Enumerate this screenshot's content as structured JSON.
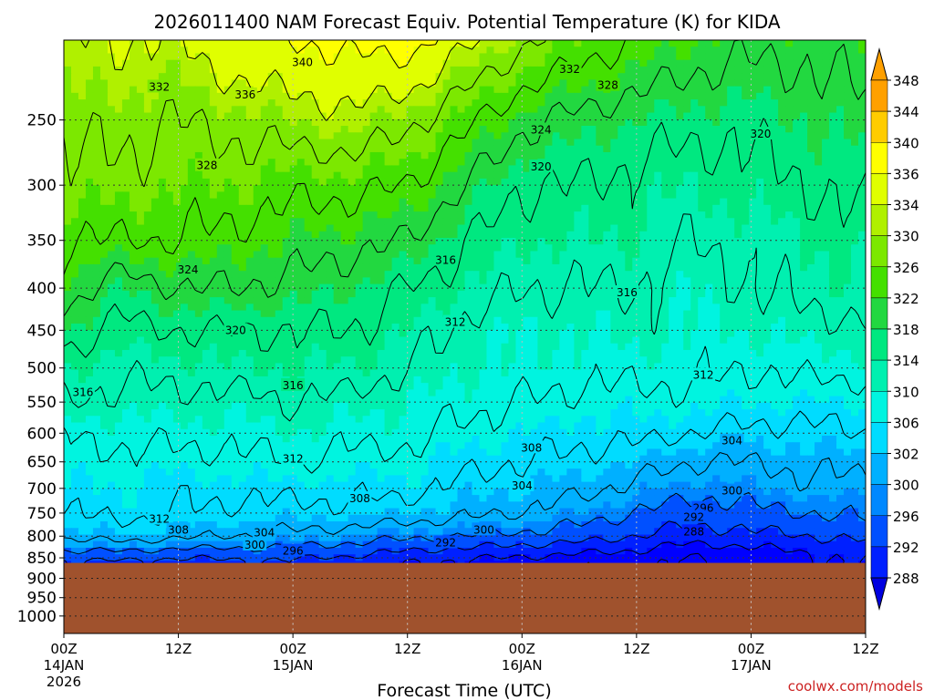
{
  "chart_data": {
    "type": "heatmap",
    "title": "2026011400 NAM Forecast Equiv. Potential Temperature (K) for KIDA",
    "xlabel": "Forecast Time (UTC)",
    "ylabel": "",
    "x_unit": "forecast hours",
    "xlim": [
      0,
      84
    ],
    "ylim": [
      1050,
      200
    ],
    "y_scale": "log",
    "grid": true,
    "legend": "right",
    "x_ticks": [
      {
        "x": 0,
        "label": "00Z",
        "sub": "14JAN",
        "sub2": "2026"
      },
      {
        "x": 12,
        "label": "12Z",
        "sub": "",
        "sub2": ""
      },
      {
        "x": 24,
        "label": "00Z",
        "sub": "15JAN",
        "sub2": ""
      },
      {
        "x": 36,
        "label": "12Z",
        "sub": "",
        "sub2": ""
      },
      {
        "x": 48,
        "label": "00Z",
        "sub": "16JAN",
        "sub2": ""
      },
      {
        "x": 60,
        "label": "12Z",
        "sub": "",
        "sub2": ""
      },
      {
        "x": 72,
        "label": "00Z",
        "sub": "17JAN",
        "sub2": ""
      },
      {
        "x": 84,
        "label": "12Z",
        "sub": "",
        "sub2": ""
      }
    ],
    "y_ticks": [
      {
        "p": 250,
        "label": "250"
      },
      {
        "p": 300,
        "label": "300"
      },
      {
        "p": 350,
        "label": "350"
      },
      {
        "p": 400,
        "label": "400"
      },
      {
        "p": 450,
        "label": "450"
      },
      {
        "p": 500,
        "label": "500"
      },
      {
        "p": 550,
        "label": "550"
      },
      {
        "p": 600,
        "label": "600"
      },
      {
        "p": 650,
        "label": "650"
      },
      {
        "p": 700,
        "label": "700"
      },
      {
        "p": 750,
        "label": "750"
      },
      {
        "p": 800,
        "label": "800"
      },
      {
        "p": 850,
        "label": "850"
      },
      {
        "p": 900,
        "label": "900"
      },
      {
        "p": 950,
        "label": "950"
      },
      {
        "p": 1000,
        "label": "1000"
      }
    ],
    "surface_pressure": 862,
    "surface_color": "#a0522d",
    "colorbar": {
      "labels": [
        "348",
        "344",
        "340",
        "336",
        "334",
        "330",
        "326",
        "322",
        "318",
        "314",
        "310",
        "306",
        "302",
        "300",
        "296",
        "292",
        "288"
      ],
      "colors": [
        "#ffa000",
        "#ffcc00",
        "#ffff00",
        "#e0ff00",
        "#b0f000",
        "#7ce800",
        "#44e000",
        "#22d840",
        "#00e880",
        "#00f0b0",
        "#00f4e0",
        "#00dcff",
        "#00b0ff",
        "#0088ff",
        "#0050ff",
        "#0020ff",
        "#0000ff"
      ],
      "arrow_top_color": "#ffa000",
      "arrow_bottom_color": "#0000e0"
    },
    "fields": [
      {
        "name": "theta_e",
        "units": "K"
      }
    ],
    "profiles": [
      {
        "x": 0,
        "theta_e": [
          [
            862,
            295
          ],
          [
            840,
            299
          ],
          [
            800,
            305
          ],
          [
            750,
            308
          ],
          [
            700,
            310
          ],
          [
            650,
            311
          ],
          [
            600,
            312
          ],
          [
            550,
            316
          ],
          [
            500,
            318
          ],
          [
            450,
            322
          ],
          [
            400,
            326
          ],
          [
            350,
            328
          ],
          [
            300,
            331
          ],
          [
            250,
            333
          ],
          [
            200,
            336
          ]
        ]
      },
      {
        "x": 6,
        "theta_e": [
          [
            862,
            295
          ],
          [
            840,
            299
          ],
          [
            800,
            306
          ],
          [
            750,
            309
          ],
          [
            700,
            310
          ],
          [
            650,
            311
          ],
          [
            600,
            313
          ],
          [
            550,
            315
          ],
          [
            500,
            317
          ],
          [
            450,
            319
          ],
          [
            400,
            322
          ],
          [
            350,
            328
          ],
          [
            300,
            331
          ],
          [
            250,
            333
          ],
          [
            200,
            336
          ]
        ]
      },
      {
        "x": 12,
        "theta_e": [
          [
            862,
            294
          ],
          [
            840,
            298
          ],
          [
            800,
            305
          ],
          [
            750,
            308
          ],
          [
            700,
            309
          ],
          [
            650,
            311
          ],
          [
            600,
            313
          ],
          [
            550,
            315
          ],
          [
            500,
            317
          ],
          [
            450,
            320
          ],
          [
            400,
            324
          ],
          [
            350,
            328
          ],
          [
            300,
            330
          ],
          [
            250,
            332
          ],
          [
            200,
            336
          ]
        ]
      },
      {
        "x": 18,
        "theta_e": [
          [
            862,
            295
          ],
          [
            840,
            298
          ],
          [
            800,
            304
          ],
          [
            750,
            307
          ],
          [
            700,
            309
          ],
          [
            650,
            311
          ],
          [
            600,
            313
          ],
          [
            550,
            315
          ],
          [
            500,
            318
          ],
          [
            450,
            320
          ],
          [
            400,
            324
          ],
          [
            350,
            327
          ],
          [
            300,
            330
          ],
          [
            250,
            333
          ],
          [
            200,
            339
          ]
        ]
      },
      {
        "x": 24,
        "theta_e": [
          [
            862,
            295
          ],
          [
            840,
            298
          ],
          [
            800,
            303
          ],
          [
            750,
            307
          ],
          [
            700,
            309
          ],
          [
            650,
            312
          ],
          [
            600,
            314
          ],
          [
            550,
            316
          ],
          [
            500,
            318
          ],
          [
            450,
            320
          ],
          [
            400,
            323
          ],
          [
            350,
            326
          ],
          [
            300,
            329
          ],
          [
            250,
            334
          ],
          [
            200,
            340
          ]
        ]
      },
      {
        "x": 30,
        "theta_e": [
          [
            862,
            293
          ],
          [
            840,
            297
          ],
          [
            800,
            302
          ],
          [
            750,
            307
          ],
          [
            700,
            309
          ],
          [
            650,
            311
          ],
          [
            600,
            313
          ],
          [
            550,
            315
          ],
          [
            500,
            318
          ],
          [
            450,
            320
          ],
          [
            400,
            322
          ],
          [
            350,
            325
          ],
          [
            300,
            329
          ],
          [
            250,
            335
          ],
          [
            200,
            341
          ]
        ]
      },
      {
        "x": 36,
        "theta_e": [
          [
            862,
            292
          ],
          [
            840,
            295
          ],
          [
            800,
            301
          ],
          [
            750,
            306
          ],
          [
            700,
            309
          ],
          [
            650,
            311
          ],
          [
            600,
            313
          ],
          [
            550,
            314
          ],
          [
            500,
            316
          ],
          [
            450,
            318
          ],
          [
            400,
            320
          ],
          [
            350,
            324
          ],
          [
            300,
            328
          ],
          [
            250,
            333
          ],
          [
            200,
            342
          ]
        ]
      },
      {
        "x": 42,
        "theta_e": [
          [
            862,
            291
          ],
          [
            840,
            294
          ],
          [
            800,
            300
          ],
          [
            750,
            305
          ],
          [
            700,
            307
          ],
          [
            650,
            309
          ],
          [
            600,
            311
          ],
          [
            550,
            313
          ],
          [
            500,
            314
          ],
          [
            450,
            315
          ],
          [
            400,
            318
          ],
          [
            350,
            320
          ],
          [
            300,
            324
          ],
          [
            250,
            329
          ],
          [
            200,
            337
          ]
        ]
      },
      {
        "x": 48,
        "theta_e": [
          [
            862,
            290
          ],
          [
            840,
            293
          ],
          [
            800,
            299
          ],
          [
            750,
            304
          ],
          [
            700,
            306
          ],
          [
            650,
            308
          ],
          [
            600,
            310
          ],
          [
            550,
            312
          ],
          [
            500,
            314
          ],
          [
            450,
            314
          ],
          [
            400,
            316
          ],
          [
            350,
            318
          ],
          [
            300,
            320
          ],
          [
            250,
            325
          ],
          [
            200,
            333
          ]
        ]
      },
      {
        "x": 54,
        "theta_e": [
          [
            862,
            289
          ],
          [
            840,
            292
          ],
          [
            800,
            298
          ],
          [
            750,
            302
          ],
          [
            700,
            305
          ],
          [
            650,
            307
          ],
          [
            600,
            309
          ],
          [
            550,
            311
          ],
          [
            500,
            313
          ],
          [
            450,
            314
          ],
          [
            400,
            316
          ],
          [
            350,
            318
          ],
          [
            300,
            320
          ],
          [
            250,
            323
          ],
          [
            200,
            330
          ]
        ]
      },
      {
        "x": 60,
        "theta_e": [
          [
            862,
            289
          ],
          [
            840,
            291
          ],
          [
            800,
            296
          ],
          [
            750,
            300
          ],
          [
            700,
            303
          ],
          [
            650,
            306
          ],
          [
            600,
            309
          ],
          [
            550,
            311
          ],
          [
            500,
            313
          ],
          [
            450,
            315
          ],
          [
            400,
            316
          ],
          [
            350,
            318
          ],
          [
            300,
            319
          ],
          [
            250,
            322
          ],
          [
            200,
            328
          ]
        ]
      },
      {
        "x": 66,
        "theta_e": [
          [
            862,
            287
          ],
          [
            840,
            289
          ],
          [
            800,
            294
          ],
          [
            750,
            298
          ],
          [
            700,
            301
          ],
          [
            650,
            304
          ],
          [
            600,
            308
          ],
          [
            550,
            311
          ],
          [
            500,
            313
          ],
          [
            450,
            314
          ],
          [
            400,
            314
          ],
          [
            350,
            316
          ],
          [
            300,
            318
          ],
          [
            250,
            321
          ],
          [
            200,
            326
          ]
        ]
      },
      {
        "x": 72,
        "theta_e": [
          [
            862,
            289
          ],
          [
            840,
            290
          ],
          [
            800,
            295
          ],
          [
            750,
            299
          ],
          [
            700,
            302
          ],
          [
            650,
            304
          ],
          [
            600,
            307
          ],
          [
            550,
            310
          ],
          [
            500,
            312
          ],
          [
            450,
            314
          ],
          [
            400,
            316
          ],
          [
            350,
            317
          ],
          [
            300,
            319
          ],
          [
            250,
            321
          ],
          [
            200,
            325
          ]
        ]
      },
      {
        "x": 78,
        "theta_e": [
          [
            862,
            291
          ],
          [
            840,
            292
          ],
          [
            800,
            296
          ],
          [
            750,
            300
          ],
          [
            700,
            303
          ],
          [
            650,
            305
          ],
          [
            600,
            307
          ],
          [
            550,
            310
          ],
          [
            500,
            313
          ],
          [
            450,
            315
          ],
          [
            400,
            317
          ],
          [
            350,
            318
          ],
          [
            300,
            320
          ],
          [
            250,
            322
          ],
          [
            200,
            325
          ]
        ]
      },
      {
        "x": 84,
        "theta_e": [
          [
            862,
            292
          ],
          [
            840,
            293
          ],
          [
            800,
            297
          ],
          [
            750,
            301
          ],
          [
            700,
            303
          ],
          [
            650,
            305
          ],
          [
            600,
            308
          ],
          [
            550,
            310
          ],
          [
            500,
            313
          ],
          [
            450,
            315
          ],
          [
            400,
            318
          ],
          [
            350,
            319
          ],
          [
            300,
            321
          ],
          [
            250,
            323
          ],
          [
            200,
            326
          ]
        ]
      }
    ],
    "contour_levels": [
      288,
      292,
      296,
      300,
      304,
      308,
      312,
      316,
      320,
      324,
      328,
      332,
      336,
      340
    ],
    "contour_labels": [
      {
        "x": 25,
        "p": 213,
        "text": "340"
      },
      {
        "x": 10,
        "p": 228,
        "text": "332"
      },
      {
        "x": 19,
        "p": 233,
        "text": "336"
      },
      {
        "x": 53,
        "p": 217,
        "text": "332"
      },
      {
        "x": 57,
        "p": 227,
        "text": "328"
      },
      {
        "x": 50,
        "p": 257,
        "text": "324"
      },
      {
        "x": 73,
        "p": 260,
        "text": "320"
      },
      {
        "x": 50,
        "p": 285,
        "text": "320"
      },
      {
        "x": 15,
        "p": 284,
        "text": "328"
      },
      {
        "x": 13,
        "p": 380,
        "text": "324"
      },
      {
        "x": 40,
        "p": 370,
        "text": "316"
      },
      {
        "x": 59,
        "p": 405,
        "text": "316"
      },
      {
        "x": 41,
        "p": 440,
        "text": "312"
      },
      {
        "x": 18,
        "p": 450,
        "text": "320"
      },
      {
        "x": 67,
        "p": 510,
        "text": "312"
      },
      {
        "x": 2,
        "p": 535,
        "text": "316"
      },
      {
        "x": 24,
        "p": 525,
        "text": "316"
      },
      {
        "x": 49,
        "p": 625,
        "text": "308"
      },
      {
        "x": 70,
        "p": 613,
        "text": "304"
      },
      {
        "x": 24,
        "p": 645,
        "text": "312"
      },
      {
        "x": 48,
        "p": 695,
        "text": "304"
      },
      {
        "x": 31,
        "p": 720,
        "text": "308"
      },
      {
        "x": 70,
        "p": 705,
        "text": "300"
      },
      {
        "x": 67,
        "p": 740,
        "text": "296"
      },
      {
        "x": 66,
        "p": 759,
        "text": "292"
      },
      {
        "x": 66,
        "p": 790,
        "text": "288"
      },
      {
        "x": 10,
        "p": 763,
        "text": "312"
      },
      {
        "x": 12,
        "p": 786,
        "text": "308"
      },
      {
        "x": 21,
        "p": 792,
        "text": "304"
      },
      {
        "x": 44,
        "p": 786,
        "text": "300"
      },
      {
        "x": 20,
        "p": 820,
        "text": "300"
      },
      {
        "x": 24,
        "p": 834,
        "text": "296"
      },
      {
        "x": 40,
        "p": 815,
        "text": "292"
      }
    ]
  },
  "footer": {
    "credit": "coolwx.com/models"
  }
}
